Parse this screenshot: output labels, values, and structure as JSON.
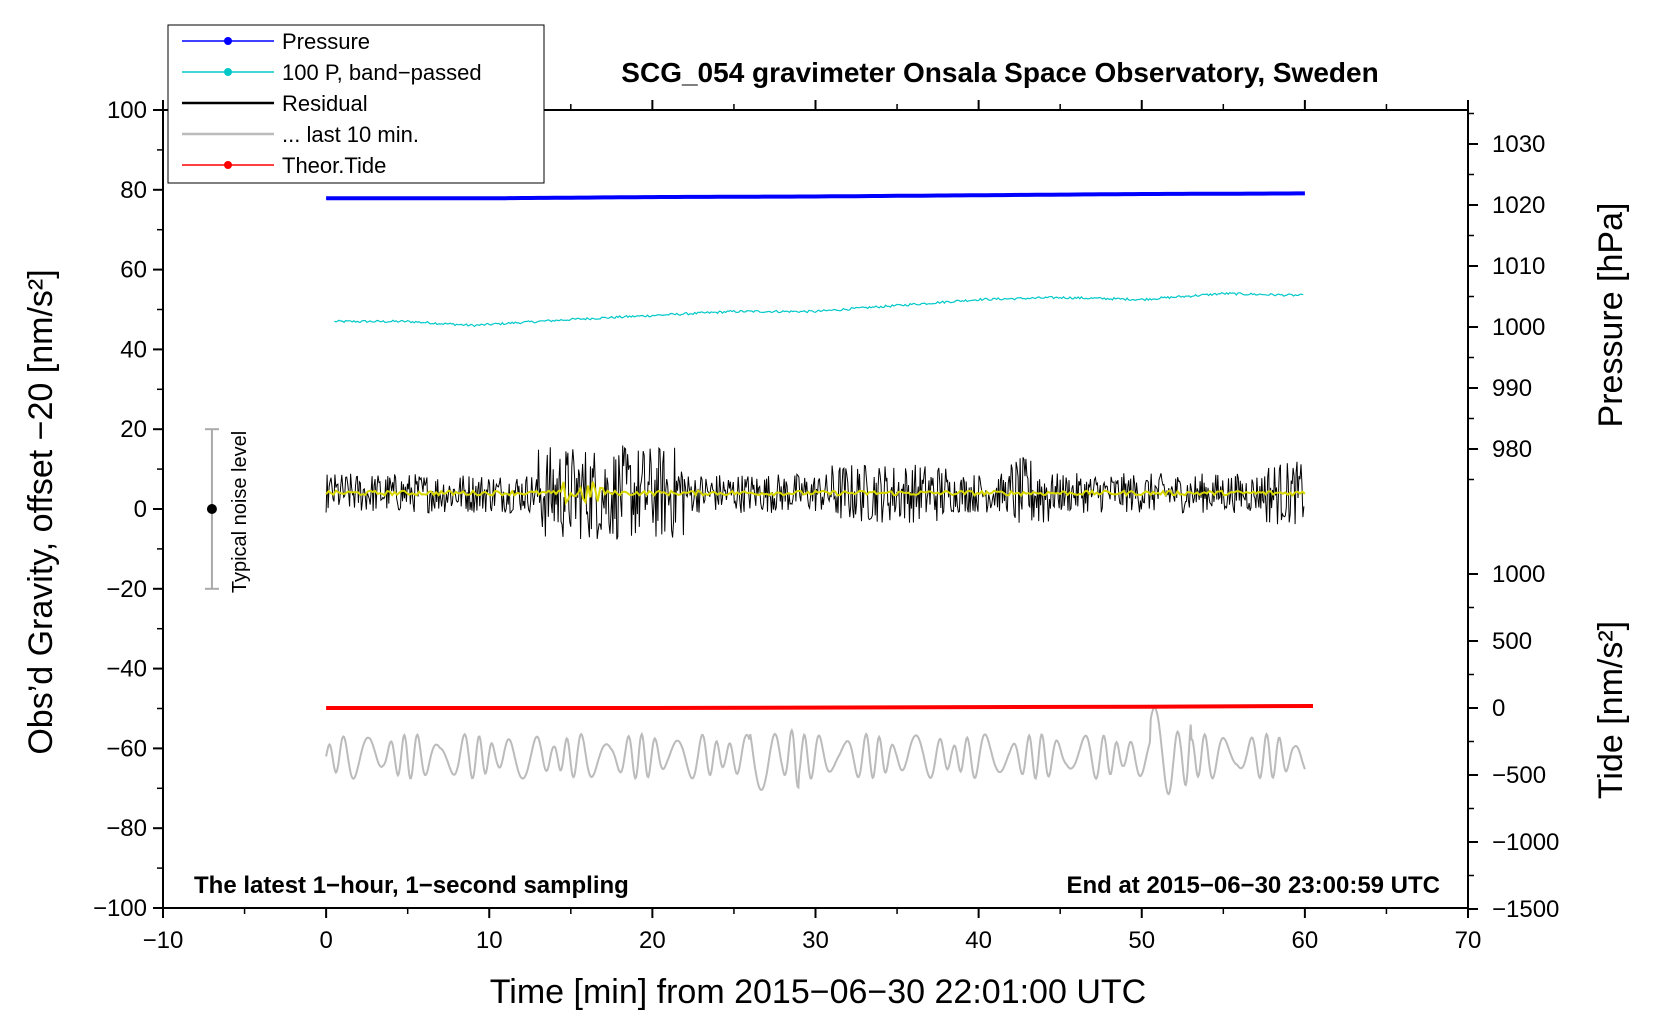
{
  "chart_data": {
    "type": "line",
    "title": "SCG_054 gravimeter Onsala Space Observatory, Sweden",
    "xlabel": "Time [min] from 2015−06−30 22:01:00 UTC",
    "ylabel": "Obs’d Gravity, offset −20 [nm/s²]",
    "ylabel_right_top": "Pressure [hPa]",
    "ylabel_right_bottom": "Tide [nm/s²]",
    "xlim": [
      -10,
      70
    ],
    "ylim": [
      -100,
      100
    ],
    "pressure_lim": [
      970,
      1035
    ],
    "tide_lim": [
      -1500,
      1000
    ],
    "x_ticks": [
      "−10",
      "0",
      "10",
      "20",
      "30",
      "40",
      "50",
      "60",
      "70"
    ],
    "y_ticks": [
      "100",
      "80",
      "60",
      "40",
      "20",
      "0",
      "−20",
      "−40",
      "−60",
      "−80",
      "−100"
    ],
    "pressure_ticks": [
      "1030",
      "1020",
      "1010",
      "1000",
      "990",
      "980"
    ],
    "tide_ticks": [
      "1000",
      "500",
      "0",
      "−500",
      "−1000",
      "−1500"
    ],
    "annotation_left": "The latest 1−hour, 1−second sampling",
    "annotation_right": "End at 2015−06−30 23:00:59 UTC",
    "noise_label": "Typical noise level",
    "noise_bar": {
      "x": -7,
      "center": 0,
      "low": -20,
      "high": 20
    },
    "legend": [
      {
        "name": "Pressure",
        "color": "#0000ff",
        "marker": true
      },
      {
        "name": "100 P, band−passed",
        "color": "#00c8c8",
        "marker": true
      },
      {
        "name": "Residual",
        "color": "#000000",
        "marker": false
      },
      {
        "name": "... last 10 min.",
        "color": "#bbbbbb",
        "marker": false
      },
      {
        "name": "Theor.Tide",
        "color": "#ff0000",
        "marker": true
      }
    ],
    "series": [
      {
        "name": "Pressure",
        "axis": "pressure",
        "color": "#0000ff",
        "x": [
          0,
          10,
          20,
          30,
          40,
          50,
          60
        ],
        "values": [
          1021.1,
          1021.1,
          1021.3,
          1021.4,
          1021.6,
          1021.8,
          1021.9
        ]
      },
      {
        "name": "100 P, band−passed",
        "axis": "gravity",
        "color": "#00c8c8",
        "x": [
          0,
          5,
          9,
          15,
          20,
          25,
          30,
          35,
          40,
          45,
          50,
          55,
          60
        ],
        "values": [
          47,
          47,
          46,
          47.5,
          48.5,
          49.5,
          49.5,
          51,
          52.5,
          53,
          52.5,
          54,
          53.5
        ]
      },
      {
        "name": "Residual",
        "axis": "gravity",
        "color": "#000000",
        "x_range": [
          0,
          60
        ],
        "baseline": 4,
        "amplitude": 5
      },
      {
        "name": "... last 10 min.",
        "axis": "gravity",
        "color": "#bbbbbb",
        "x_range": [
          0,
          60
        ],
        "baseline": -62,
        "amplitude": 4
      },
      {
        "name": "Theor.Tide",
        "axis": "tide",
        "color": "#ff0000",
        "x": [
          0,
          20,
          37,
          50,
          60.5
        ],
        "values": [
          0,
          0,
          5,
          10,
          15
        ]
      }
    ]
  }
}
